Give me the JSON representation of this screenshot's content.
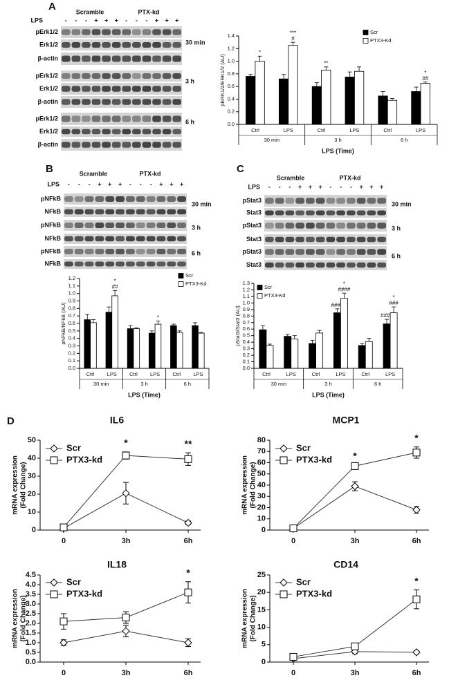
{
  "panel_labels": [
    "A",
    "B",
    "C",
    "D"
  ],
  "blots": [
    {
      "headers": [
        "Scramble",
        "PTX-kd"
      ],
      "lps_label": "LPS",
      "signs": [
        "-",
        "-",
        "-",
        "+",
        "+",
        "+",
        "-",
        "-",
        "-",
        "+",
        "+",
        "+"
      ],
      "groups": [
        {
          "time": "30 min",
          "rows": [
            "pErk1/2",
            "Erk1/2",
            "β-actin"
          ]
        },
        {
          "time": "3 h",
          "rows": [
            "pErk1/2",
            "Erk1/2",
            "β-actin"
          ]
        },
        {
          "time": "6 h",
          "rows": [
            "pErk1/2",
            "Erk1/2",
            "β-actin"
          ]
        }
      ]
    },
    {
      "headers": [
        "Scramble",
        "PTX-kd"
      ],
      "lps_label": "LPS",
      "signs": [
        "-",
        "-",
        "-",
        "+",
        "+",
        "+",
        "-",
        "-",
        "-",
        "+",
        "+",
        "+"
      ],
      "groups": [
        {
          "time": "30 min",
          "rows": [
            "pNFkB",
            "NFkB"
          ]
        },
        {
          "time": "3 h",
          "rows": [
            "pNFkB",
            "NFkB"
          ]
        },
        {
          "time": "6 h",
          "rows": [
            "pNFkB",
            "NFkB"
          ]
        }
      ]
    },
    {
      "headers": [
        "Scramble",
        "PTX-kd"
      ],
      "lps_label": "LPS",
      "signs": [
        "-",
        "-",
        "-",
        "+",
        "+",
        "+",
        "-",
        "-",
        "-",
        "+",
        "+",
        "+"
      ],
      "groups": [
        {
          "time": "30 min",
          "rows": [
            "pStat3",
            "Stat3"
          ]
        },
        {
          "time": "3 h",
          "rows": [
            "pStat3",
            "Stat3"
          ]
        },
        {
          "time": "6 h",
          "rows": [
            "pStat3",
            "Stat3"
          ]
        }
      ]
    }
  ],
  "chart_data": [
    {
      "type": "bar",
      "y_label": "pERK1/2/ERK1/2 (AU)",
      "x_label": "LPS (Time)",
      "categories": [
        "Ctrl",
        "LPS",
        "Ctrl",
        "LPS",
        "Ctrl",
        "LPS"
      ],
      "groups": [
        "30 min",
        "3 h",
        "6 h"
      ],
      "ylim": [
        0,
        1.4
      ],
      "yticks": [
        {
          "value": 0,
          "label": "0.0"
        },
        0.2,
        0.4,
        0.6,
        0.8,
        {
          "value": 1,
          "label": "1.0"
        },
        1.2,
        1.4
      ],
      "legend": "top-right",
      "series": [
        {
          "name": "Scr",
          "color": "#000000",
          "values": [
            0.76,
            0.72,
            0.6,
            0.75,
            0.45,
            0.52
          ],
          "errors": [
            0.03,
            0.07,
            0.06,
            0.08,
            0.07,
            0.07
          ],
          "significance": [
            null,
            null,
            null,
            null,
            null,
            null
          ]
        },
        {
          "name": "PTX3-Kd",
          "color": "#ffffff",
          "values": [
            1.0,
            1.25,
            0.86,
            0.84,
            0.38,
            0.65
          ],
          "errors": [
            0.08,
            0.05,
            0.05,
            0.07,
            0.03,
            0.02
          ],
          "significance": [
            [
              "*"
            ],
            [
              "***",
              "#"
            ],
            [
              "**"
            ],
            null,
            null,
            [
              "*",
              "##"
            ]
          ]
        }
      ]
    },
    {
      "type": "bar",
      "y_label": "pNFkB/NFkB (AU)",
      "x_label": "LPS (Time)",
      "categories": [
        "Ctrl",
        "LPS",
        "Ctrl",
        "LPS",
        "Ctrl",
        "LPS"
      ],
      "groups": [
        "30 min",
        "3 h",
        "6 h"
      ],
      "ylim": [
        0,
        1.2
      ],
      "yticks": [
        {
          "value": 0,
          "label": "0.0"
        },
        0.1,
        0.2,
        0.3,
        0.4,
        0.5,
        0.6,
        0.7,
        0.8,
        0.9,
        {
          "value": 1,
          "label": "1.0"
        },
        1.1,
        1.2
      ],
      "legend": "top-right",
      "series": [
        {
          "name": "Scr",
          "color": "#000000",
          "values": [
            0.65,
            0.75,
            0.53,
            0.47,
            0.57,
            0.57
          ],
          "errors": [
            0.07,
            0.07,
            0.04,
            0.03,
            0.02,
            0.04
          ],
          "significance": [
            null,
            null,
            null,
            null,
            null,
            null
          ]
        },
        {
          "name": "PTX3-Kd",
          "color": "#ffffff",
          "values": [
            0.61,
            0.97,
            0.53,
            0.59,
            0.48,
            0.47
          ],
          "errors": [
            0.04,
            0.07,
            0.01,
            0.04,
            0.02,
            0.01
          ],
          "significance": [
            null,
            [
              "*",
              "##"
            ],
            null,
            [
              "*"
            ],
            null,
            null
          ]
        }
      ]
    },
    {
      "type": "bar",
      "y_label": "pStat3/Stat3 (AU)",
      "x_label": "LPS (Time)",
      "categories": [
        "Ctrl",
        "LPS",
        "Ctrl",
        "LPS",
        "Ctrl",
        "LPS"
      ],
      "groups": [
        "30 min",
        "3 h",
        "6 h"
      ],
      "ylim": [
        0,
        1.3
      ],
      "yticks": [
        {
          "value": 0,
          "label": "0.0"
        },
        0.1,
        0.2,
        0.3,
        0.4,
        0.5,
        0.6,
        0.7,
        0.8,
        0.9,
        {
          "value": 1,
          "label": "1.0"
        },
        1.1,
        1.2,
        1.3
      ],
      "legend": "top-left",
      "series": [
        {
          "name": "Scr",
          "color": "#000000",
          "values": [
            0.59,
            0.49,
            0.38,
            0.85,
            0.35,
            0.68
          ],
          "errors": [
            0.06,
            0.03,
            0.05,
            0.06,
            0.03,
            0.07
          ],
          "significance": [
            null,
            null,
            null,
            [
              "####"
            ],
            null,
            [
              "####"
            ]
          ]
        },
        {
          "name": "PTX3-Kd",
          "color": "#ffffff",
          "values": [
            0.35,
            0.45,
            0.54,
            1.07,
            0.41,
            0.85
          ],
          "errors": [
            0.02,
            0.05,
            0.04,
            0.08,
            0.05,
            0.09
          ],
          "significance": [
            null,
            null,
            null,
            [
              "*",
              "####"
            ],
            null,
            [
              "*",
              "###"
            ]
          ]
        }
      ]
    },
    {
      "type": "line",
      "title": "IL6",
      "y_label": [
        "mRNA expression",
        "(Fold Change)"
      ],
      "categories": [
        "0",
        "3h",
        "6h"
      ],
      "ylim": [
        0,
        50
      ],
      "yticks": [
        0,
        10,
        20,
        30,
        40,
        50
      ],
      "legend": "top-left",
      "significance": [
        null,
        "*",
        "**"
      ],
      "series": [
        {
          "name": "Scr",
          "marker": "diamond",
          "values": [
            1,
            20.5,
            4
          ],
          "errors": [
            0.5,
            6,
            1
          ]
        },
        {
          "name": "PTX3-kd",
          "marker": "square",
          "values": [
            1.5,
            41.5,
            39.5
          ],
          "errors": [
            0.5,
            2,
            3.5
          ]
        }
      ]
    },
    {
      "type": "line",
      "title": "MCP1",
      "y_label": [
        "mRNA expression",
        "(Fold Change)"
      ],
      "categories": [
        "0",
        "3h",
        "6h"
      ],
      "ylim": [
        0,
        80
      ],
      "yticks": [
        0,
        10,
        20,
        30,
        40,
        50,
        60,
        70,
        80
      ],
      "legend": "top-left",
      "significance": [
        null,
        "*",
        "*"
      ],
      "series": [
        {
          "name": "Scr",
          "marker": "diamond",
          "values": [
            1.5,
            39,
            18
          ],
          "errors": [
            0.5,
            4,
            3
          ]
        },
        {
          "name": "PTX3-kd",
          "marker": "square",
          "values": [
            1.5,
            57,
            69
          ],
          "errors": [
            0.5,
            1,
            5
          ]
        }
      ]
    },
    {
      "type": "line",
      "title": "IL18",
      "y_label": [
        "mRNA expression",
        "(Fold Change)"
      ],
      "categories": [
        "0",
        "3h",
        "6h"
      ],
      "ylim": [
        0,
        4.5
      ],
      "yticks": [
        {
          "value": 0,
          "label": "0.0"
        },
        0.5,
        {
          "value": 1,
          "label": "1.0"
        },
        1.5,
        {
          "value": 2,
          "label": "2.0"
        },
        2.5,
        {
          "value": 3,
          "label": "3.0"
        },
        3.5,
        {
          "value": 4,
          "label": "4.0"
        },
        4.5
      ],
      "legend": "top-left",
      "significance": [
        null,
        null,
        "*"
      ],
      "series": [
        {
          "name": "Scr",
          "marker": "diamond",
          "values": [
            1.0,
            1.6,
            1.0
          ],
          "errors": [
            0.15,
            0.3,
            0.2
          ]
        },
        {
          "name": "PTX3-kd",
          "marker": "square",
          "values": [
            2.1,
            2.3,
            3.6
          ],
          "errors": [
            0.4,
            0.3,
            0.55
          ]
        }
      ]
    },
    {
      "type": "line",
      "title": "CD14",
      "y_label": [
        "mRNA expression",
        "(Fold Change)"
      ],
      "categories": [
        "0",
        "3h",
        "6h"
      ],
      "ylim": [
        0,
        25
      ],
      "yticks": [
        0,
        5,
        10,
        15,
        20,
        25
      ],
      "legend": "top-left",
      "significance": [
        null,
        null,
        "*"
      ],
      "series": [
        {
          "name": "Scr",
          "marker": "diamond",
          "values": [
            1,
            3,
            2.8
          ],
          "errors": [
            0.3,
            0.6,
            0.4
          ]
        },
        {
          "name": "PTX3-kd",
          "marker": "square",
          "values": [
            1.5,
            4.5,
            18
          ],
          "errors": [
            0.3,
            0.5,
            2.7
          ]
        }
      ]
    }
  ]
}
